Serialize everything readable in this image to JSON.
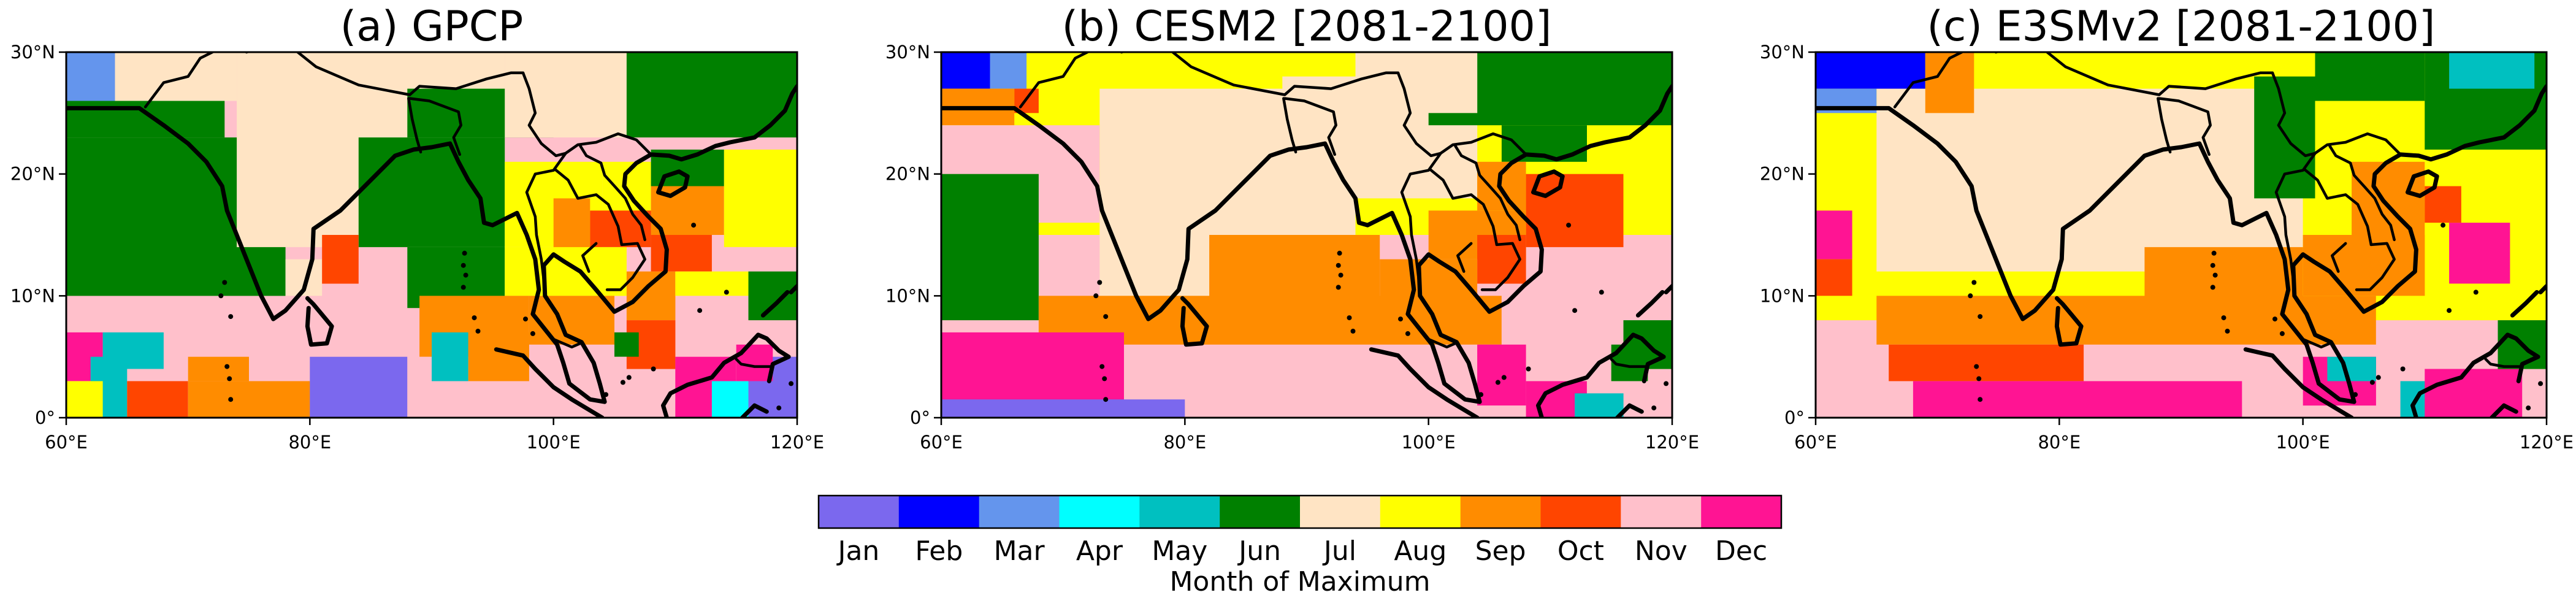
{
  "chart_data": {
    "type": "heatmap",
    "colorbar": {
      "label": "Month of Maximum",
      "months": [
        "Jan",
        "Feb",
        "Mar",
        "Apr",
        "May",
        "Jun",
        "Jul",
        "Aug",
        "Sep",
        "Oct",
        "Nov",
        "Dec"
      ],
      "colors": [
        "#7b68ee",
        "#0000ff",
        "#6495ed",
        "#00ffff",
        "#00c0c0",
        "#008000",
        "#ffe4c4",
        "#ffff00",
        "#ff8c00",
        "#ff4500",
        "#ffc0cb",
        "#ff1493"
      ]
    },
    "xlim": [
      60,
      120
    ],
    "ylim": [
      0,
      30
    ],
    "xticks": [
      "60°E",
      "80°E",
      "100°E",
      "120°E"
    ],
    "yticks": [
      "0°",
      "10°N",
      "20°N",
      "30°N"
    ],
    "panels": [
      {
        "title": "(a) GPCP",
        "regions": [
          {
            "lon": [
              60,
              120
            ],
            "lat": [
              0,
              30
            ],
            "month": "Nov"
          },
          {
            "lon": [
              60,
              78
            ],
            "lat": [
              10,
              23
            ],
            "month": "Jun"
          },
          {
            "lon": [
              60,
              73
            ],
            "lat": [
              23,
              26
            ],
            "month": "Jun"
          },
          {
            "lon": [
              60,
              64
            ],
            "lat": [
              26,
              30
            ],
            "month": "Mar"
          },
          {
            "lon": [
              64,
              74
            ],
            "lat": [
              26,
              30
            ],
            "month": "Jul"
          },
          {
            "lon": [
              74,
              96
            ],
            "lat": [
              14,
              30
            ],
            "month": "Jul"
          },
          {
            "lon": [
              78,
              81
            ],
            "lat": [
              10,
              13
            ],
            "month": "Jul"
          },
          {
            "lon": [
              88,
              100
            ],
            "lat": [
              23,
              27
            ],
            "month": "Jun"
          },
          {
            "lon": [
              96,
              106
            ],
            "lat": [
              23,
              30
            ],
            "month": "Jul"
          },
          {
            "lon": [
              106,
              120
            ],
            "lat": [
              23,
              30
            ],
            "month": "Jun"
          },
          {
            "lon": [
              84,
              96
            ],
            "lat": [
              14,
              23
            ],
            "month": "Jun"
          },
          {
            "lon": [
              96,
              104
            ],
            "lat": [
              14,
              21
            ],
            "month": "Aug"
          },
          {
            "lon": [
              104,
              108
            ],
            "lat": [
              15,
              21
            ],
            "month": "Aug"
          },
          {
            "lon": [
              108,
              114
            ],
            "lat": [
              19,
              22
            ],
            "month": "Jun"
          },
          {
            "lon": [
              108,
              114
            ],
            "lat": [
              15,
              19
            ],
            "month": "Sep"
          },
          {
            "lon": [
              114,
              120
            ],
            "lat": [
              14,
              22
            ],
            "month": "Aug"
          },
          {
            "lon": [
              100,
              103
            ],
            "lat": [
              13,
              18
            ],
            "month": "Sep"
          },
          {
            "lon": [
              103,
              108
            ],
            "lat": [
              14,
              17
            ],
            "month": "Oct"
          },
          {
            "lon": [
              108,
              113
            ],
            "lat": [
              12,
              15
            ],
            "month": "Oct"
          },
          {
            "lon": [
              88,
              96
            ],
            "lat": [
              9,
              14
            ],
            "month": "Jun"
          },
          {
            "lon": [
              96,
              106
            ],
            "lat": [
              10,
              14
            ],
            "month": "Aug"
          },
          {
            "lon": [
              106,
              110
            ],
            "lat": [
              8,
              12
            ],
            "month": "Sep"
          },
          {
            "lon": [
              110,
              116
            ],
            "lat": [
              10,
              12
            ],
            "month": "Aug"
          },
          {
            "lon": [
              116,
              120
            ],
            "lat": [
              8,
              12
            ],
            "month": "Jun"
          },
          {
            "lon": [
              81,
              84
            ],
            "lat": [
              11,
              15
            ],
            "month": "Oct"
          },
          {
            "lon": [
              89,
              98
            ],
            "lat": [
              5,
              10
            ],
            "month": "Sep"
          },
          {
            "lon": [
              98,
              105
            ],
            "lat": [
              6,
              10
            ],
            "month": "Sep"
          },
          {
            "lon": [
              93,
              98
            ],
            "lat": [
              3,
              7
            ],
            "month": "Sep"
          },
          {
            "lon": [
              106,
              110
            ],
            "lat": [
              4,
              8
            ],
            "month": "Oct"
          },
          {
            "lon": [
              105,
              107
            ],
            "lat": [
              5,
              7
            ],
            "month": "Jun"
          },
          {
            "lon": [
              60,
              63
            ],
            "lat": [
              3,
              7
            ],
            "month": "Dec"
          },
          {
            "lon": [
              63,
              68
            ],
            "lat": [
              4,
              7
            ],
            "month": "May"
          },
          {
            "lon": [
              62,
              65
            ],
            "lat": [
              0,
              5
            ],
            "month": "May"
          },
          {
            "lon": [
              60,
              63
            ],
            "lat": [
              0,
              3
            ],
            "month": "Aug"
          },
          {
            "lon": [
              65,
              70
            ],
            "lat": [
              0,
              3
            ],
            "month": "Oct"
          },
          {
            "lon": [
              70,
              75
            ],
            "lat": [
              3,
              5
            ],
            "month": "Sep"
          },
          {
            "lon": [
              70,
              80
            ],
            "lat": [
              0,
              3
            ],
            "month": "Sep"
          },
          {
            "lon": [
              80,
              88
            ],
            "lat": [
              0,
              5
            ],
            "month": "Jan"
          },
          {
            "lon": [
              90,
              93
            ],
            "lat": [
              3,
              7
            ],
            "month": "May"
          },
          {
            "lon": [
              110,
              115
            ],
            "lat": [
              0,
              5
            ],
            "month": "Dec"
          },
          {
            "lon": [
              113,
              116
            ],
            "lat": [
              0,
              3
            ],
            "month": "Apr"
          },
          {
            "lon": [
              116,
              120
            ],
            "lat": [
              0,
              5
            ],
            "month": "Jan"
          },
          {
            "lon": [
              115,
              118
            ],
            "lat": [
              3,
              6
            ],
            "month": "Dec"
          }
        ]
      },
      {
        "title": "(b) CESM2 [2081-2100]",
        "regions": [
          {
            "lon": [
              60,
              120
            ],
            "lat": [
              0,
              30
            ],
            "month": "Nov"
          },
          {
            "lon": [
              60,
              120
            ],
            "lat": [
              15,
              30
            ],
            "month": "Aug"
          },
          {
            "lon": [
              73,
              94
            ],
            "lat": [
              9,
              27
            ],
            "month": "Jul"
          },
          {
            "lon": [
              88,
              104
            ],
            "lat": [
              18,
              28
            ],
            "month": "Jul"
          },
          {
            "lon": [
              60,
              64
            ],
            "lat": [
              27,
              30
            ],
            "month": "Feb"
          },
          {
            "lon": [
              64,
              67
            ],
            "lat": [
              27,
              30
            ],
            "month": "Mar"
          },
          {
            "lon": [
              60,
              66
            ],
            "lat": [
              24,
              27
            ],
            "month": "Sep"
          },
          {
            "lon": [
              66,
              68
            ],
            "lat": [
              25,
              27
            ],
            "month": "Oct"
          },
          {
            "lon": [
              60,
              73
            ],
            "lat": [
              16,
              24
            ],
            "month": "Nov"
          },
          {
            "lon": [
              60,
              68
            ],
            "lat": [
              8,
              20
            ],
            "month": "Jun"
          },
          {
            "lon": [
              100,
              120
            ],
            "lat": [
              24,
              30
            ],
            "month": "Jun"
          },
          {
            "lon": [
              94,
              104
            ],
            "lat": [
              25,
              30
            ],
            "month": "Jul"
          },
          {
            "lon": [
              106,
              113
            ],
            "lat": [
              21,
              24
            ],
            "month": "Jun"
          },
          {
            "lon": [
              104,
              108
            ],
            "lat": [
              17,
              21
            ],
            "month": "Sep"
          },
          {
            "lon": [
              108,
              116
            ],
            "lat": [
              14,
              20
            ],
            "month": "Oct"
          },
          {
            "lon": [
              100,
              108
            ],
            "lat": [
              13,
              17
            ],
            "month": "Sep"
          },
          {
            "lon": [
              104,
              108
            ],
            "lat": [
              11,
              15
            ],
            "month": "Oct"
          },
          {
            "lon": [
              96,
              104
            ],
            "lat": [
              9,
              13
            ],
            "month": "Sep"
          },
          {
            "lon": [
              68,
              106
            ],
            "lat": [
              6,
              10
            ],
            "month": "Sep"
          },
          {
            "lon": [
              82,
              96
            ],
            "lat": [
              9,
              15
            ],
            "month": "Sep"
          },
          {
            "lon": [
              60,
              75
            ],
            "lat": [
              0,
              7
            ],
            "month": "Dec"
          },
          {
            "lon": [
              60,
              80
            ],
            "lat": [
              0,
              1.5
            ],
            "month": "Jan"
          },
          {
            "lon": [
              104,
              108
            ],
            "lat": [
              1,
              6
            ],
            "month": "Dec"
          },
          {
            "lon": [
              108,
              113
            ],
            "lat": [
              0,
              3
            ],
            "month": "Dec"
          },
          {
            "lon": [
              115,
              118
            ],
            "lat": [
              3,
              6
            ],
            "month": "Jun"
          },
          {
            "lon": [
              112,
              116
            ],
            "lat": [
              0,
              2
            ],
            "month": "May"
          },
          {
            "lon": [
              116,
              120
            ],
            "lat": [
              4,
              8
            ],
            "month": "Jun"
          }
        ]
      },
      {
        "title": "(c) E3SMv2 [2081-2100]",
        "regions": [
          {
            "lon": [
              60,
              120
            ],
            "lat": [
              0,
              30
            ],
            "month": "Nov"
          },
          {
            "lon": [
              60,
              120
            ],
            "lat": [
              8,
              30
            ],
            "month": "Aug"
          },
          {
            "lon": [
              65,
              100
            ],
            "lat": [
              12,
              27
            ],
            "month": "Jul"
          },
          {
            "lon": [
              60,
              69
            ],
            "lat": [
              27,
              30
            ],
            "month": "Feb"
          },
          {
            "lon": [
              60,
              65
            ],
            "lat": [
              25,
              27
            ],
            "month": "Mar"
          },
          {
            "lon": [
              69,
              73
            ],
            "lat": [
              25,
              30
            ],
            "month": "Sep"
          },
          {
            "lon": [
              96,
              101
            ],
            "lat": [
              18,
              28
            ],
            "month": "Jun"
          },
          {
            "lon": [
              101,
              110
            ],
            "lat": [
              26,
              30
            ],
            "month": "Jun"
          },
          {
            "lon": [
              110,
              120
            ],
            "lat": [
              22,
              30
            ],
            "month": "Jun"
          },
          {
            "lon": [
              112,
              119
            ],
            "lat": [
              27,
              30
            ],
            "month": "May"
          },
          {
            "lon": [
              104,
              110
            ],
            "lat": [
              15,
              21
            ],
            "month": "Sep"
          },
          {
            "lon": [
              110,
              113
            ],
            "lat": [
              16,
              19
            ],
            "month": "Oct"
          },
          {
            "lon": [
              100,
              110
            ],
            "lat": [
              10,
              15
            ],
            "month": "Sep"
          },
          {
            "lon": [
              112,
              117
            ],
            "lat": [
              11,
              16
            ],
            "month": "Dec"
          },
          {
            "lon": [
              60,
              63
            ],
            "lat": [
              13,
              17
            ],
            "month": "Dec"
          },
          {
            "lon": [
              60,
              63
            ],
            "lat": [
              10,
              13
            ],
            "month": "Oct"
          },
          {
            "lon": [
              65,
              106
            ],
            "lat": [
              6,
              10
            ],
            "month": "Sep"
          },
          {
            "lon": [
              87,
              100
            ],
            "lat": [
              9,
              14
            ],
            "month": "Sep"
          },
          {
            "lon": [
              66,
              82
            ],
            "lat": [
              3,
              6
            ],
            "month": "Oct"
          },
          {
            "lon": [
              68,
              95
            ],
            "lat": [
              0,
              3
            ],
            "month": "Dec"
          },
          {
            "lon": [
              100,
              106
            ],
            "lat": [
              1,
              5
            ],
            "month": "Dec"
          },
          {
            "lon": [
              102,
              106
            ],
            "lat": [
              3,
              5
            ],
            "month": "May"
          },
          {
            "lon": [
              108,
              113
            ],
            "lat": [
              0,
              3
            ],
            "month": "May"
          },
          {
            "lon": [
              110,
              118
            ],
            "lat": [
              0,
              4
            ],
            "month": "Dec"
          },
          {
            "lon": [
              116,
              120
            ],
            "lat": [
              4,
              8
            ],
            "month": "Jun"
          }
        ]
      }
    ]
  }
}
